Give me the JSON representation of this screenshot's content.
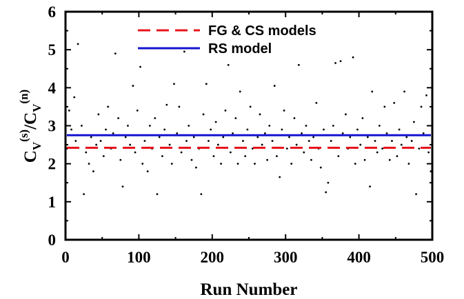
{
  "chart_data": {
    "type": "scatter",
    "xlabel": "Run Number",
    "ylabel": {
      "base1": "C",
      "sub1": "V",
      "sup1": "(s)",
      "sep": "/",
      "base2": "C",
      "sub2": "V",
      "sup2": "(n)"
    },
    "xlim": [
      0,
      500
    ],
    "ylim": [
      0,
      6
    ],
    "x_ticks": [
      "0",
      "100",
      "200",
      "300",
      "400",
      "500"
    ],
    "y_ticks": [
      "0",
      "1",
      "2",
      "3",
      "4",
      "5",
      "6"
    ],
    "grid": false,
    "legend_position": "top-center",
    "series": [
      {
        "name": "FG & CS models",
        "kind": "hline",
        "value": 2.42,
        "color": "#e8141b",
        "style": "dashed"
      },
      {
        "name": "RS model",
        "kind": "hline",
        "value": 2.75,
        "color": "#1414d0",
        "style": "solid"
      }
    ],
    "points": [
      [
        2,
        2.4
      ],
      [
        5,
        3.4
      ],
      [
        8,
        2.9
      ],
      [
        12,
        3.75
      ],
      [
        14,
        2.6
      ],
      [
        17,
        5.15
      ],
      [
        22,
        3.0
      ],
      [
        25,
        1.2
      ],
      [
        28,
        2.3
      ],
      [
        32,
        2.0
      ],
      [
        35,
        2.7
      ],
      [
        38,
        1.8
      ],
      [
        42,
        2.5
      ],
      [
        45,
        3.3
      ],
      [
        48,
        2.6
      ],
      [
        52,
        2.2
      ],
      [
        55,
        2.9
      ],
      [
        58,
        3.5
      ],
      [
        62,
        2.4
      ],
      [
        65,
        2.8
      ],
      [
        68,
        4.9
      ],
      [
        72,
        3.2
      ],
      [
        75,
        2.1
      ],
      [
        78,
        1.4
      ],
      [
        82,
        2.7
      ],
      [
        85,
        3.0
      ],
      [
        88,
        2.5
      ],
      [
        92,
        4.05
      ],
      [
        95,
        2.3
      ],
      [
        98,
        3.4
      ],
      [
        102,
        4.55
      ],
      [
        105,
        2.0
      ],
      [
        108,
        2.6
      ],
      [
        112,
        1.8
      ],
      [
        115,
        3.0
      ],
      [
        118,
        2.4
      ],
      [
        122,
        3.2
      ],
      [
        125,
        1.2
      ],
      [
        128,
        2.7
      ],
      [
        132,
        2.2
      ],
      [
        135,
        2.9
      ],
      [
        138,
        3.55
      ],
      [
        142,
        2.5
      ],
      [
        145,
        2.0
      ],
      [
        148,
        4.1
      ],
      [
        152,
        2.8
      ],
      [
        155,
        3.5
      ],
      [
        158,
        2.3
      ],
      [
        162,
        4.95
      ],
      [
        165,
        2.6
      ],
      [
        168,
        3.0
      ],
      [
        172,
        2.1
      ],
      [
        175,
        2.7
      ],
      [
        178,
        1.9
      ],
      [
        182,
        2.4
      ],
      [
        185,
        1.2
      ],
      [
        188,
        3.3
      ],
      [
        192,
        4.1
      ],
      [
        195,
        2.6
      ],
      [
        198,
        2.9
      ],
      [
        202,
        2.2
      ],
      [
        205,
        3.1
      ],
      [
        208,
        2.5
      ],
      [
        212,
        2.0
      ],
      [
        215,
        2.7
      ],
      [
        218,
        3.4
      ],
      [
        222,
        4.6
      ],
      [
        225,
        2.3
      ],
      [
        228,
        2.8
      ],
      [
        232,
        3.2
      ],
      [
        235,
        2.0
      ],
      [
        238,
        3.9
      ],
      [
        242,
        2.6
      ],
      [
        245,
        2.2
      ],
      [
        248,
        2.9
      ],
      [
        252,
        3.5
      ],
      [
        255,
        2.4
      ],
      [
        258,
        2.0
      ],
      [
        262,
        2.7
      ],
      [
        265,
        3.3
      ],
      [
        268,
        2.5
      ],
      [
        272,
        2.8
      ],
      [
        275,
        2.1
      ],
      [
        278,
        3.0
      ],
      [
        282,
        2.6
      ],
      [
        285,
        4.05
      ],
      [
        288,
        2.2
      ],
      [
        292,
        1.65
      ],
      [
        295,
        2.9
      ],
      [
        298,
        3.4
      ],
      [
        302,
        2.4
      ],
      [
        305,
        2.7
      ],
      [
        308,
        2.0
      ],
      [
        312,
        3.2
      ],
      [
        315,
        2.5
      ],
      [
        318,
        4.6
      ],
      [
        322,
        2.8
      ],
      [
        325,
        2.3
      ],
      [
        328,
        3.0
      ],
      [
        332,
        2.6
      ],
      [
        335,
        2.1
      ],
      [
        338,
        2.7
      ],
      [
        342,
        3.6
      ],
      [
        345,
        2.4
      ],
      [
        348,
        1.9
      ],
      [
        352,
        2.9
      ],
      [
        355,
        1.25
      ],
      [
        358,
        1.5
      ],
      [
        362,
        2.6
      ],
      [
        365,
        3.0
      ],
      [
        368,
        4.65
      ],
      [
        372,
        2.2
      ],
      [
        375,
        4.7
      ],
      [
        378,
        2.8
      ],
      [
        382,
        3.3
      ],
      [
        385,
        2.4
      ],
      [
        388,
        2.7
      ],
      [
        392,
        4.8
      ],
      [
        395,
        2.0
      ],
      [
        398,
        2.9
      ],
      [
        402,
        2.5
      ],
      [
        405,
        3.2
      ],
      [
        408,
        2.1
      ],
      [
        412,
        2.7
      ],
      [
        415,
        1.4
      ],
      [
        418,
        3.9
      ],
      [
        422,
        2.6
      ],
      [
        425,
        2.3
      ],
      [
        428,
        3.0
      ],
      [
        432,
        2.4
      ],
      [
        435,
        3.5
      ],
      [
        438,
        2.8
      ],
      [
        442,
        2.1
      ],
      [
        445,
        2.6
      ],
      [
        448,
        3.6
      ],
      [
        452,
        2.2
      ],
      [
        455,
        2.9
      ],
      [
        458,
        2.5
      ],
      [
        462,
        3.9
      ],
      [
        465,
        2.7
      ],
      [
        468,
        2.0
      ],
      [
        472,
        2.6
      ],
      [
        475,
        3.1
      ],
      [
        478,
        1.2
      ],
      [
        482,
        2.4
      ],
      [
        485,
        3.5
      ],
      [
        488,
        2.8
      ],
      [
        492,
        3.8
      ],
      [
        495,
        2.3
      ],
      [
        498,
        1.8
      ]
    ]
  }
}
